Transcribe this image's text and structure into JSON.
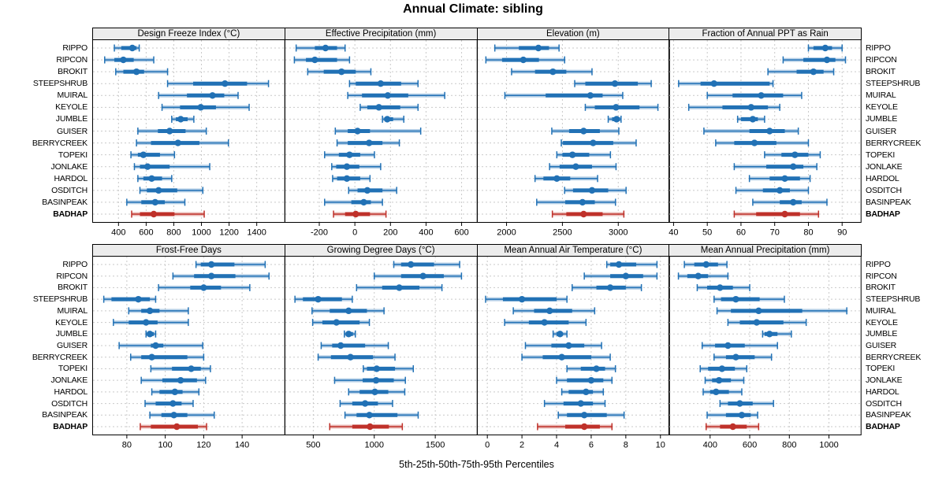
{
  "title": "Annual Climate: sibling",
  "caption": "5th-25th-50th-75th-95th Percentiles",
  "colors": {
    "site": "#2171b5",
    "highlight": "#bf312a",
    "grid": "#c9c9c9",
    "border": "#000000",
    "strip_bg": "#ececec"
  },
  "chart_data": {
    "type": "percentile-dotplot",
    "percentiles": [
      5,
      25,
      50,
      75,
      95
    ],
    "highlight_site": "BADHAP",
    "sites": [
      "RIPPO",
      "RIPCON",
      "BROKIT",
      "STEEPSHRUB",
      "MUIRAL",
      "KEYOLE",
      "JUMBLE",
      "GUISER",
      "BERRYCREEK",
      "TOPEKI",
      "JONLAKE",
      "HARDOL",
      "OSDITCH",
      "BASINPEAK",
      "BADHAP"
    ],
    "panels": [
      {
        "title": "Design Freeze Index (°C)",
        "axis_min": 210,
        "axis_max": 1600,
        "ticks": [
          400,
          600,
          800,
          1000,
          1200,
          1400
        ],
        "values": [
          [
            370,
            420,
            500,
            530,
            550
          ],
          [
            300,
            370,
            435,
            510,
            655
          ],
          [
            380,
            435,
            530,
            585,
            755
          ],
          [
            755,
            940,
            1170,
            1330,
            1485
          ],
          [
            690,
            895,
            1080,
            1165,
            1265
          ],
          [
            715,
            845,
            995,
            1105,
            1345
          ],
          [
            785,
            815,
            850,
            900,
            945
          ],
          [
            540,
            685,
            770,
            885,
            1035
          ],
          [
            530,
            635,
            830,
            985,
            1195
          ],
          [
            490,
            540,
            580,
            700,
            805
          ],
          [
            515,
            555,
            610,
            770,
            1060
          ],
          [
            540,
            580,
            640,
            715,
            785
          ],
          [
            555,
            605,
            690,
            825,
            1010
          ],
          [
            460,
            565,
            665,
            735,
            880
          ],
          [
            495,
            555,
            655,
            805,
            1020
          ]
        ]
      },
      {
        "title": "Effective Precipitation (mm)",
        "axis_min": -395,
        "axis_max": 685,
        "ticks": [
          -200,
          0,
          200,
          400,
          600
        ],
        "values": [
          [
            -330,
            -225,
            -165,
            -100,
            -55
          ],
          [
            -340,
            -275,
            -225,
            -100,
            -30
          ],
          [
            -265,
            -175,
            -75,
            5,
            90
          ],
          [
            -30,
            5,
            145,
            260,
            355
          ],
          [
            -40,
            40,
            185,
            300,
            505
          ],
          [
            30,
            70,
            135,
            255,
            355
          ],
          [
            155,
            170,
            182,
            215,
            275
          ],
          [
            -110,
            -40,
            15,
            85,
            370
          ],
          [
            -100,
            -40,
            80,
            155,
            250
          ],
          [
            -170,
            -90,
            -30,
            30,
            110
          ],
          [
            -130,
            -105,
            -45,
            25,
            145
          ],
          [
            -125,
            -100,
            -45,
            30,
            85
          ],
          [
            -35,
            15,
            70,
            155,
            235
          ],
          [
            -170,
            -20,
            50,
            90,
            155
          ],
          [
            -120,
            -55,
            5,
            85,
            175
          ]
        ]
      },
      {
        "title": "Elevation (m)",
        "axis_min": 1735,
        "axis_max": 3455,
        "ticks": [
          2000,
          2500,
          3000
        ],
        "values": [
          [
            1895,
            2110,
            2285,
            2380,
            2470
          ],
          [
            1815,
            1960,
            2150,
            2290,
            2520
          ],
          [
            2045,
            2255,
            2415,
            2535,
            2765
          ],
          [
            2610,
            2705,
            2970,
            3175,
            3295
          ],
          [
            1985,
            2350,
            2750,
            2860,
            3040
          ],
          [
            2705,
            2790,
            2980,
            3190,
            3355
          ],
          [
            2910,
            2945,
            2985,
            3015,
            3025
          ],
          [
            2405,
            2560,
            2690,
            2835,
            3005
          ],
          [
            2490,
            2505,
            2775,
            2955,
            3160
          ],
          [
            2450,
            2500,
            2590,
            2740,
            2930
          ],
          [
            2385,
            2475,
            2620,
            2765,
            2980
          ],
          [
            2255,
            2330,
            2450,
            2570,
            2815
          ],
          [
            2520,
            2595,
            2765,
            2910,
            3070
          ],
          [
            2270,
            2525,
            2680,
            2790,
            2975
          ],
          [
            2410,
            2535,
            2690,
            2860,
            3050
          ]
        ]
      },
      {
        "title": "Fraction of Annual PPT as Rain",
        "axis_min": 38.5,
        "axis_max": 95.5,
        "ticks": [
          40,
          50,
          60,
          70,
          80,
          90
        ],
        "values": [
          [
            80,
            81.5,
            85,
            87,
            90
          ],
          [
            72.5,
            78.5,
            85.5,
            88,
            91
          ],
          [
            68,
            76.5,
            81.5,
            84.5,
            87.5
          ],
          [
            41.5,
            48,
            52,
            68.5,
            69.5
          ],
          [
            50,
            57.5,
            66,
            72.5,
            78
          ],
          [
            44.5,
            54.5,
            63,
            68,
            71.5
          ],
          [
            59,
            60,
            63.5,
            65,
            67
          ],
          [
            49,
            62.5,
            68.5,
            73,
            77
          ],
          [
            52.5,
            58,
            64,
            70.5,
            80
          ],
          [
            67,
            72,
            76,
            80,
            83.5
          ],
          [
            58,
            67.5,
            75.5,
            78.5,
            82.5
          ],
          [
            62.5,
            68.5,
            73,
            77.5,
            80.5
          ],
          [
            58.5,
            66.5,
            71.5,
            74.5,
            80
          ],
          [
            63.5,
            71.5,
            75.5,
            78,
            85.5
          ],
          [
            58,
            64.5,
            73,
            77.5,
            83
          ]
        ]
      },
      {
        "title": "Frost-Free Days",
        "axis_min": 62,
        "axis_max": 162,
        "ticks": [
          80,
          100,
          120,
          140
        ],
        "values": [
          [
            116,
            118.5,
            124,
            136,
            152
          ],
          [
            104,
            115,
            124,
            136.5,
            154
          ],
          [
            96.5,
            113,
            120,
            129,
            144
          ],
          [
            68,
            72,
            86,
            92,
            95
          ],
          [
            81,
            87.5,
            92,
            97,
            112
          ],
          [
            73,
            81,
            90,
            96,
            112
          ],
          [
            90,
            90.5,
            92,
            94,
            95
          ],
          [
            76,
            92.5,
            95,
            99,
            119.5
          ],
          [
            82,
            87.5,
            93,
            111.5,
            120
          ],
          [
            92.5,
            103.5,
            113.5,
            118.5,
            123.5
          ],
          [
            87.5,
            98.5,
            108,
            116.5,
            121
          ],
          [
            93,
            97,
            105,
            109,
            117.5
          ],
          [
            89.5,
            95,
            104,
            108.5,
            114.5
          ],
          [
            92,
            98,
            104.5,
            111.5,
            125.5
          ],
          [
            87,
            92.5,
            106,
            117,
            121.5
          ]
        ]
      },
      {
        "title": "Growing Degree Days (°C)",
        "axis_min": 265,
        "axis_max": 1840,
        "ticks": [
          500,
          1000,
          1500
        ],
        "values": [
          [
            1160,
            1220,
            1300,
            1490,
            1700
          ],
          [
            1000,
            1220,
            1400,
            1570,
            1715
          ],
          [
            855,
            1065,
            1205,
            1370,
            1555
          ],
          [
            350,
            415,
            540,
            735,
            820
          ],
          [
            490,
            635,
            790,
            940,
            1080
          ],
          [
            495,
            575,
            690,
            880,
            960
          ],
          [
            755,
            770,
            790,
            825,
            845
          ],
          [
            565,
            655,
            725,
            925,
            1115
          ],
          [
            540,
            645,
            805,
            990,
            1170
          ],
          [
            910,
            940,
            1020,
            1170,
            1320
          ],
          [
            675,
            905,
            1015,
            1160,
            1255
          ],
          [
            790,
            880,
            1005,
            1115,
            1250
          ],
          [
            720,
            820,
            925,
            1030,
            1150
          ],
          [
            760,
            855,
            960,
            1190,
            1360
          ],
          [
            635,
            820,
            965,
            1120,
            1230
          ]
        ]
      },
      {
        "title": "Mean Annual Air Temperature (°C)",
        "axis_min": -0.6,
        "axis_max": 10.5,
        "ticks": [
          0,
          2,
          4,
          6,
          8,
          10
        ],
        "values": [
          [
            6.9,
            7.1,
            7.6,
            8.6,
            9.8
          ],
          [
            5.6,
            7.1,
            8.0,
            9.0,
            9.8
          ],
          [
            4.9,
            6.3,
            7.1,
            8.0,
            8.9
          ],
          [
            -0.1,
            0.9,
            2.0,
            4.0,
            4.6
          ],
          [
            1.5,
            2.7,
            3.6,
            4.9,
            6.2
          ],
          [
            1.0,
            2.4,
            3.3,
            4.7,
            5.7
          ],
          [
            3.8,
            4.0,
            4.2,
            4.3,
            4.6
          ],
          [
            2.2,
            3.7,
            4.7,
            5.6,
            6.6
          ],
          [
            2.0,
            3.2,
            4.3,
            6.0,
            7.1
          ],
          [
            4.6,
            5.4,
            6.3,
            6.8,
            7.4
          ],
          [
            4.0,
            4.6,
            6.0,
            6.7,
            7.2
          ],
          [
            4.3,
            4.7,
            5.7,
            6.1,
            6.7
          ],
          [
            3.3,
            4.4,
            5.4,
            6.1,
            6.8
          ],
          [
            4.1,
            4.6,
            5.6,
            6.9,
            7.9
          ],
          [
            2.9,
            4.5,
            5.6,
            6.5,
            7.2
          ]
        ]
      },
      {
        "title": "Mean Annual Precipitation (mm)",
        "axis_min": 190,
        "axis_max": 1160,
        "ticks": [
          400,
          600,
          800,
          1000
        ],
        "values": [
          [
            270,
            320,
            380,
            440,
            485
          ],
          [
            240,
            285,
            340,
            390,
            490
          ],
          [
            335,
            385,
            450,
            515,
            600
          ],
          [
            420,
            455,
            530,
            650,
            775
          ],
          [
            435,
            505,
            645,
            865,
            1090
          ],
          [
            490,
            550,
            635,
            770,
            885
          ],
          [
            665,
            675,
            700,
            740,
            810
          ],
          [
            360,
            425,
            490,
            575,
            740
          ],
          [
            420,
            480,
            530,
            625,
            710
          ],
          [
            350,
            390,
            460,
            525,
            585
          ],
          [
            375,
            410,
            445,
            505,
            570
          ],
          [
            365,
            400,
            430,
            495,
            560
          ],
          [
            450,
            490,
            550,
            615,
            720
          ],
          [
            385,
            480,
            560,
            605,
            640
          ],
          [
            380,
            450,
            515,
            585,
            645
          ]
        ]
      }
    ]
  }
}
